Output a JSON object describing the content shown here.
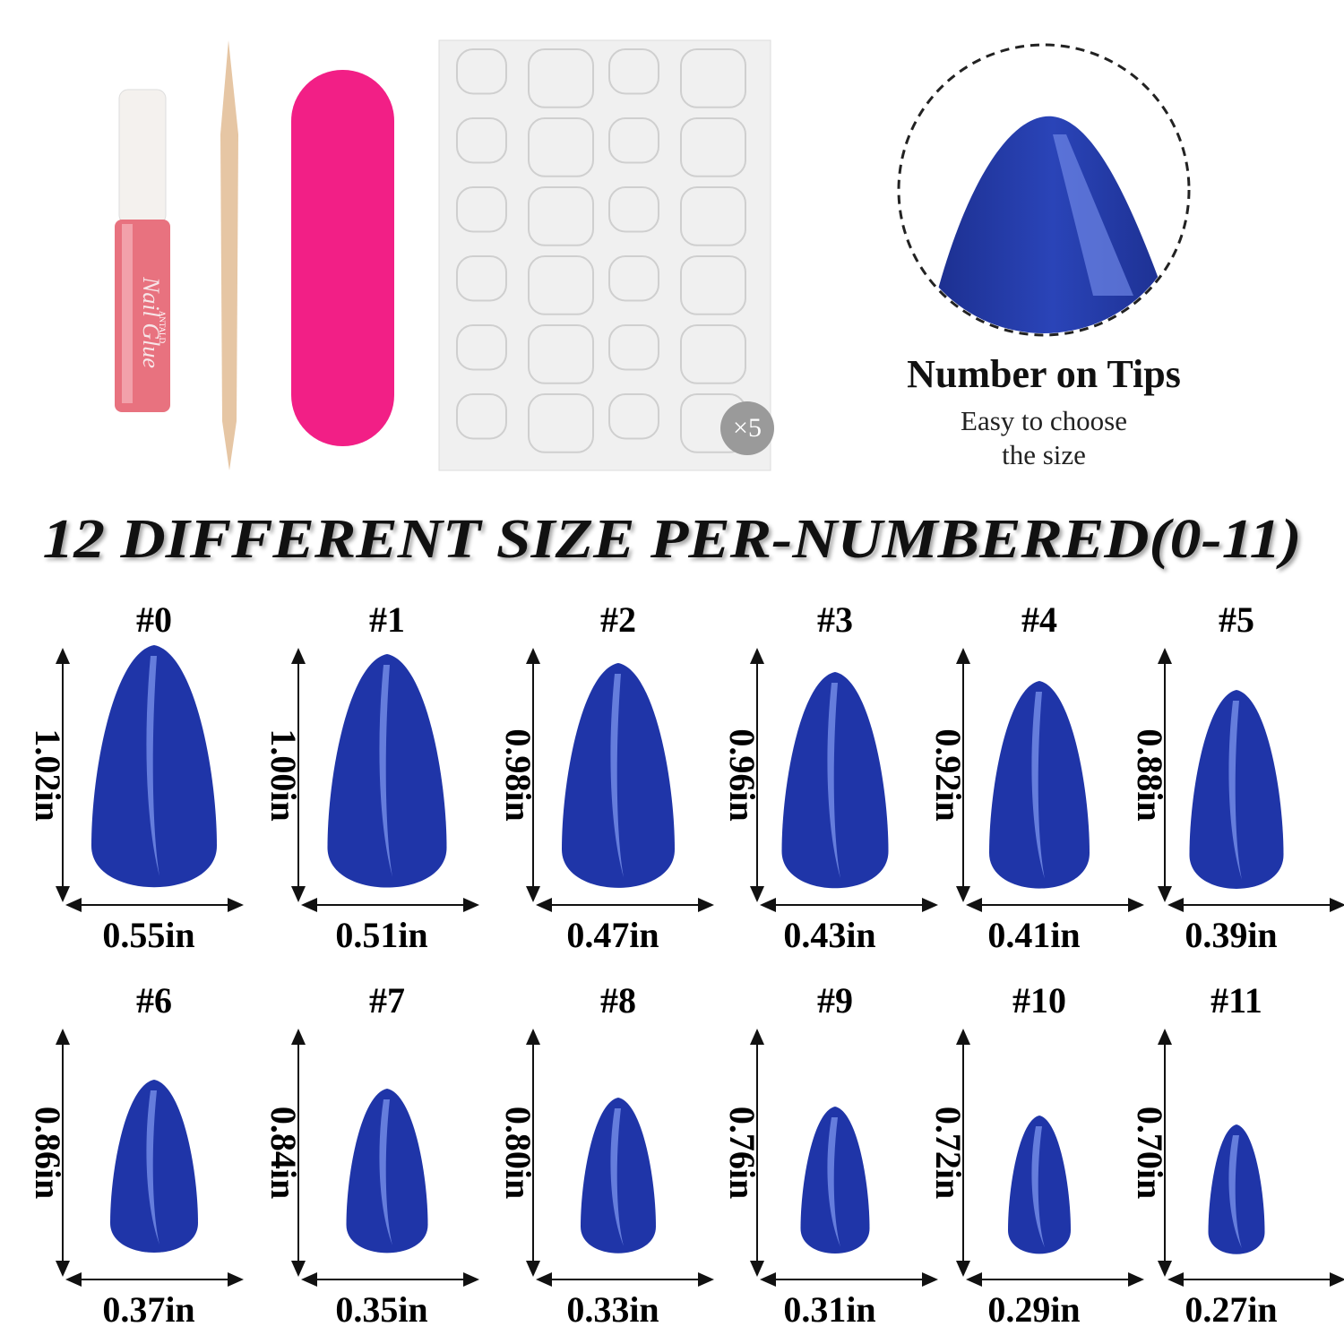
{
  "kit": {
    "glue_label": "Nail Glue",
    "glue_brand": "ANTALD",
    "sheet_badge": "×5"
  },
  "callout": {
    "title": "Number on Tips",
    "line1": "Easy to choose",
    "line2": "the size"
  },
  "headline": "12 DIFFERENT SIZE PER-NUMBERED(0-11)",
  "nails": [
    {
      "number": "#0",
      "height": "1.02in",
      "width": "0.55in"
    },
    {
      "number": "#1",
      "height": "1.00in",
      "width": "0.51in"
    },
    {
      "number": "#2",
      "height": "0.98in",
      "width": "0.47in"
    },
    {
      "number": "#3",
      "height": "0.96in",
      "width": "0.43in"
    },
    {
      "number": "#4",
      "height": "0.92in",
      "width": "0.41in"
    },
    {
      "number": "#5",
      "height": "0.88in",
      "width": "0.39in"
    },
    {
      "number": "#6",
      "height": "0.86in",
      "width": "0.37in"
    },
    {
      "number": "#7",
      "height": "0.84in",
      "width": "0.35in"
    },
    {
      "number": "#8",
      "height": "0.80in",
      "width": "0.33in"
    },
    {
      "number": "#9",
      "height": "0.76in",
      "width": "0.31in"
    },
    {
      "number": "#10",
      "height": "0.72in",
      "width": "0.29in"
    },
    {
      "number": "#11",
      "height": "0.70in",
      "width": "0.27in"
    }
  ]
}
